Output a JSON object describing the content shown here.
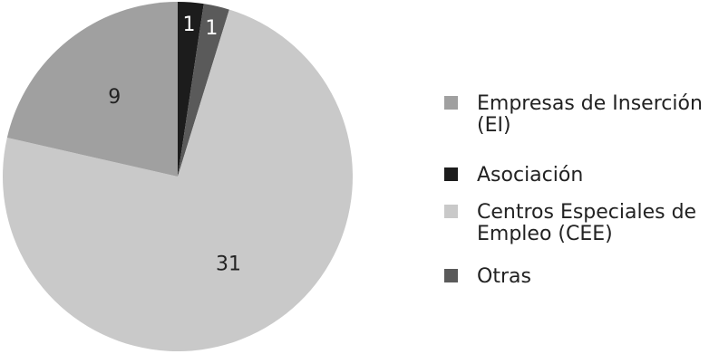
{
  "chart_data": {
    "type": "pie",
    "start_angle": "12 o'clock, clockwise",
    "slices": [
      {
        "label_lines": [
          "Asociación"
        ],
        "value": 1,
        "value_label": "1",
        "color": "#1c1c1c",
        "label_color": "#ffffff"
      },
      {
        "label_lines": [
          "Otras"
        ],
        "value": 1,
        "value_label": "1",
        "color": "#5a5a5a",
        "label_color": "#ffffff"
      },
      {
        "label_lines": [
          "Centros Especiales de",
          "Empleo (CEE)"
        ],
        "value": 31,
        "value_label": "31",
        "color": "#c9c9c9",
        "label_color": "#222222"
      },
      {
        "label_lines": [
          "Empresas de Inserción",
          "(EI)"
        ],
        "value": 9,
        "value_label": "9",
        "color": "#a0a0a0",
        "label_color": "#222222"
      }
    ],
    "legend": {
      "placement": "right",
      "items": [
        {
          "lines": [
            "Empresas de Inserción",
            "(EI)"
          ],
          "color": "#a0a0a0"
        },
        {
          "lines": [
            "Asociación"
          ],
          "color": "#1c1c1c"
        },
        {
          "lines": [
            "Centros Especiales de",
            "Empleo (CEE)"
          ],
          "color": "#c9c9c9"
        },
        {
          "lines": [
            "Otras"
          ],
          "color": "#5a5a5a"
        }
      ]
    }
  }
}
